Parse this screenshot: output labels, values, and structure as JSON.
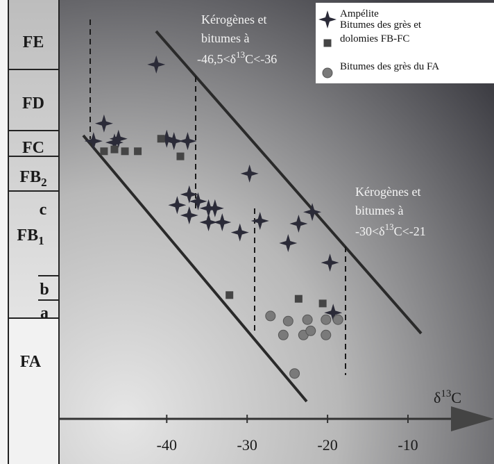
{
  "chart_data": {
    "type": "scatter",
    "x_label": "δ",
    "x_label_sup": "13",
    "x_label_end": "C",
    "xlim": [
      -53.4,
      0.7
    ],
    "ylim": [
      0,
      100
    ],
    "xticks": [
      -40,
      -30,
      -20,
      -10
    ],
    "column": [
      {
        "label": "FE"
      },
      {
        "label": "FD"
      },
      {
        "label": "FC"
      },
      {
        "label": "FB",
        "sub": "2"
      },
      {
        "label": "c"
      },
      {
        "label": "FB",
        "sub": "1"
      },
      {
        "label": "b"
      },
      {
        "label": "a"
      },
      {
        "label": "FA"
      }
    ],
    "annotations": [
      {
        "lines": [
          "Kérogènes et",
          "bitumes à"
        ],
        "pre": "-46,5<δ",
        "sup": "13",
        "post": "C<-36"
      },
      {
        "lines": [
          "Kérogènes et",
          "bitumes à"
        ],
        "pre": "-30<δ",
        "sup": "13",
        "post": "C<-21"
      }
    ],
    "legend": "top-right",
    "series": [
      {
        "name": "Ampélite",
        "marker": "star",
        "color": "#2b2b38",
        "x": [
          -41.3,
          -47.8,
          -49.1,
          -46.5,
          -46.0,
          -39.1,
          -37.4,
          -40.0,
          -29.7,
          -38.7,
          -37.2,
          -36.1,
          -34.8,
          -34.0,
          -37.2,
          -34.8,
          -33.1,
          -30.9,
          -28.4,
          -21.9,
          -23.6,
          -24.9,
          -19.7,
          -19.3
        ],
        "values": [
          86.1,
          73.4,
          69.6,
          69.3,
          70.1,
          69.6,
          69.6,
          70.1,
          62.6,
          55.8,
          58.1,
          56.6,
          55.1,
          55.1,
          53.6,
          52.1,
          52.1,
          49.9,
          52.4,
          54.3,
          51.8,
          47.6,
          43.4,
          32.6
        ]
      },
      {
        "name": "Bitumes des grès et dolomies FB-FC",
        "marker": "square",
        "color": "#454545",
        "x": [
          -47.8,
          -46.5,
          -45.2,
          -43.6,
          -40.7,
          -38.3,
          -32.2,
          -23.6,
          -20.6
        ],
        "values": [
          67.4,
          67.8,
          67.4,
          67.4,
          70.1,
          66.3,
          36.4,
          35.6,
          34.6
        ]
      },
      {
        "name": "Bitumes des grès du FA",
        "marker": "circle",
        "color": "#7a7a7a",
        "x": [
          -27.1,
          -24.9,
          -22.5,
          -20.2,
          -18.7,
          -25.5,
          -23.0,
          -22.1,
          -20.2,
          -24.1
        ],
        "values": [
          31.9,
          30.8,
          31.1,
          31.1,
          31.1,
          27.8,
          27.8,
          28.7,
          27.8,
          19.5
        ]
      }
    ]
  }
}
